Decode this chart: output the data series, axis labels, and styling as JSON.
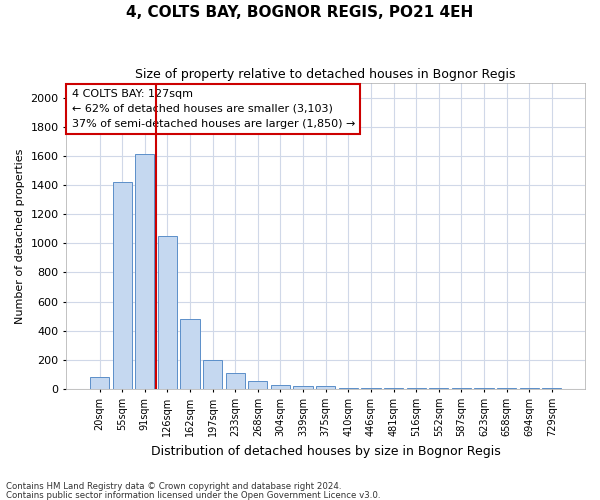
{
  "title": "4, COLTS BAY, BOGNOR REGIS, PO21 4EH",
  "subtitle": "Size of property relative to detached houses in Bognor Regis",
  "xlabel": "Distribution of detached houses by size in Bognor Regis",
  "ylabel": "Number of detached properties",
  "categories": [
    "20sqm",
    "55sqm",
    "91sqm",
    "126sqm",
    "162sqm",
    "197sqm",
    "233sqm",
    "268sqm",
    "304sqm",
    "339sqm",
    "375sqm",
    "410sqm",
    "446sqm",
    "481sqm",
    "516sqm",
    "552sqm",
    "587sqm",
    "623sqm",
    "658sqm",
    "694sqm",
    "729sqm"
  ],
  "values": [
    85,
    1420,
    1610,
    1050,
    480,
    200,
    110,
    55,
    30,
    20,
    20,
    8,
    5,
    5,
    5,
    5,
    5,
    5,
    5,
    5,
    10
  ],
  "bar_color": "#c5d8f0",
  "bar_edge_color": "#5b8fc9",
  "vline_color": "#cc0000",
  "vline_idx": 2.5,
  "annotation_text": "4 COLTS BAY: 127sqm\n← 62% of detached houses are smaller (3,103)\n37% of semi-detached houses are larger (1,850) →",
  "annotation_box_edgecolor": "#cc0000",
  "ylim": [
    0,
    2100
  ],
  "yticks": [
    0,
    200,
    400,
    600,
    800,
    1000,
    1200,
    1400,
    1600,
    1800,
    2000
  ],
  "footer_line1": "Contains HM Land Registry data © Crown copyright and database right 2024.",
  "footer_line2": "Contains public sector information licensed under the Open Government Licence v3.0.",
  "background_color": "#ffffff",
  "plot_bg_color": "#ffffff",
  "grid_color": "#d0d8e8",
  "title_fontsize": 11,
  "subtitle_fontsize": 9,
  "ylabel_fontsize": 8,
  "xlabel_fontsize": 9,
  "tick_fontsize": 8,
  "xtick_fontsize": 7,
  "annot_fontsize": 8
}
